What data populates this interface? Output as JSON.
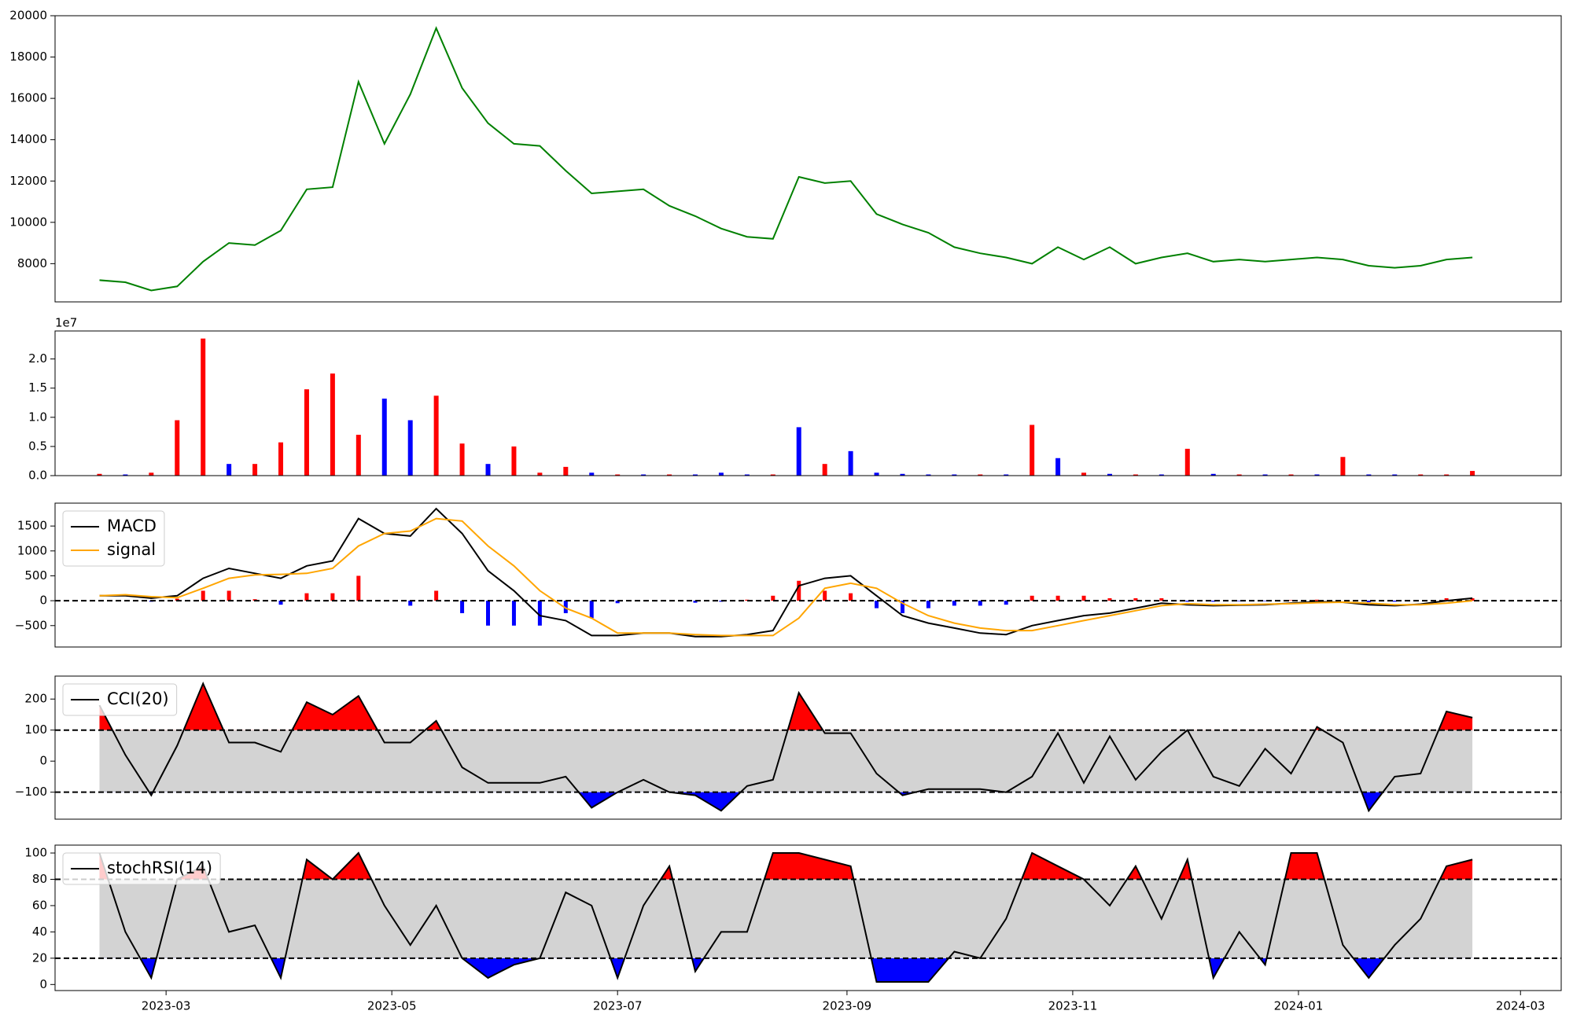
{
  "chart_data": [
    {
      "type": "line",
      "x": [
        "2023-02-11",
        "2023-02-18",
        "2023-02-25",
        "2023-03-04",
        "2023-03-11",
        "2023-03-18",
        "2023-03-25",
        "2023-04-01",
        "2023-04-08",
        "2023-04-15",
        "2023-04-22",
        "2023-04-29",
        "2023-05-06",
        "2023-05-13",
        "2023-05-20",
        "2023-05-27",
        "2023-06-03",
        "2023-06-10",
        "2023-06-17",
        "2023-06-24",
        "2023-07-01",
        "2023-07-08",
        "2023-07-15",
        "2023-07-22",
        "2023-07-29",
        "2023-08-05",
        "2023-08-12",
        "2023-08-19",
        "2023-08-26",
        "2023-09-02",
        "2023-09-09",
        "2023-09-16",
        "2023-09-23",
        "2023-09-30",
        "2023-10-07",
        "2023-10-14",
        "2023-10-21",
        "2023-10-28",
        "2023-11-04",
        "2023-11-11",
        "2023-11-18",
        "2023-11-25",
        "2023-12-02",
        "2023-12-09",
        "2023-12-16",
        "2023-12-23",
        "2023-12-30",
        "2024-01-06",
        "2024-01-13",
        "2024-01-20",
        "2024-01-27",
        "2024-02-03",
        "2024-02-10",
        "2024-02-17"
      ],
      "series": [
        {
          "color": "green",
          "values": [
            7200,
            7100,
            6700,
            6900,
            8100,
            9000,
            8900,
            9600,
            11600,
            11700,
            16800,
            13800,
            16200,
            19400,
            16500,
            14800,
            13800,
            13700,
            12500,
            11400,
            11500,
            11600,
            10800,
            10300,
            9700,
            9300,
            9200,
            12200,
            11900,
            12000,
            10400,
            9900,
            9500,
            8800,
            8500,
            8300,
            8000,
            8800,
            8200,
            8800,
            8000,
            8300,
            8500,
            8100,
            8200,
            8100,
            8200,
            8300,
            8200,
            7900,
            7800,
            7900,
            8200,
            8300
          ]
        }
      ],
      "xlim": [
        "2023-01-30",
        "2024-03-12"
      ],
      "ylim": [
        6150,
        20000
      ],
      "yticks": [
        8000,
        10000,
        12000,
        14000,
        16000,
        18000,
        20000
      ]
    },
    {
      "type": "bar",
      "offset_label": "1e7",
      "x": [
        "2023-02-11",
        "2023-02-18",
        "2023-02-25",
        "2023-03-04",
        "2023-03-11",
        "2023-03-18",
        "2023-03-25",
        "2023-04-01",
        "2023-04-08",
        "2023-04-15",
        "2023-04-22",
        "2023-04-29",
        "2023-05-06",
        "2023-05-13",
        "2023-05-20",
        "2023-05-27",
        "2023-06-03",
        "2023-06-10",
        "2023-06-17",
        "2023-06-24",
        "2023-07-01",
        "2023-07-08",
        "2023-07-15",
        "2023-07-22",
        "2023-07-29",
        "2023-08-05",
        "2023-08-12",
        "2023-08-19",
        "2023-08-26",
        "2023-09-02",
        "2023-09-09",
        "2023-09-16",
        "2023-09-23",
        "2023-09-30",
        "2023-10-07",
        "2023-10-14",
        "2023-10-21",
        "2023-10-28",
        "2023-11-04",
        "2023-11-11",
        "2023-11-18",
        "2023-11-25",
        "2023-12-02",
        "2023-12-09",
        "2023-12-16",
        "2023-12-23",
        "2023-12-30",
        "2024-01-06",
        "2024-01-13",
        "2024-01-20",
        "2024-01-27",
        "2024-02-03",
        "2024-02-10",
        "2024-02-17"
      ],
      "values": [
        0.03,
        0.02,
        0.05,
        0.95,
        2.35,
        0.2,
        0.2,
        0.57,
        1.48,
        1.75,
        0.7,
        1.32,
        0.95,
        1.37,
        0.55,
        0.2,
        0.5,
        0.05,
        0.15,
        0.05,
        0.02,
        0.02,
        0.02,
        0.02,
        0.05,
        0.02,
        0.02,
        0.83,
        0.2,
        0.42,
        0.05,
        0.03,
        0.02,
        0.02,
        0.02,
        0.02,
        0.87,
        0.3,
        0.05,
        0.03,
        0.02,
        0.02,
        0.46,
        0.03,
        0.02,
        0.02,
        0.02,
        0.02,
        0.32,
        0.02,
        0.02,
        0.02,
        0.02,
        0.08
      ],
      "colors": [
        "red",
        "blue",
        "red",
        "red",
        "red",
        "blue",
        "red",
        "red",
        "red",
        "red",
        "red",
        "blue",
        "blue",
        "red",
        "red",
        "blue",
        "red",
        "red",
        "red",
        "blue",
        "red",
        "blue",
        "red",
        "blue",
        "blue",
        "blue",
        "red",
        "blue",
        "red",
        "blue",
        "blue",
        "blue",
        "blue",
        "blue",
        "red",
        "blue",
        "red",
        "blue",
        "red",
        "blue",
        "red",
        "blue",
        "red",
        "blue",
        "red",
        "blue",
        "red",
        "blue",
        "red",
        "blue",
        "blue",
        "red",
        "red",
        "red"
      ],
      "xlim": [
        "2023-01-30",
        "2024-03-12"
      ],
      "ylim": [
        0,
        2.48
      ],
      "yticks": [
        {
          "value": 0,
          "label": "0.0"
        },
        {
          "value": 0.5,
          "label": "0.5"
        },
        {
          "value": 1,
          "label": "1.0"
        },
        {
          "value": 1.5,
          "label": "1.5"
        },
        {
          "value": 2,
          "label": "2.0"
        }
      ]
    },
    {
      "type": "macd",
      "legend": "upper left",
      "hlines": [
        0
      ],
      "x": [
        "2023-02-11",
        "2023-02-18",
        "2023-02-25",
        "2023-03-04",
        "2023-03-11",
        "2023-03-18",
        "2023-03-25",
        "2023-04-01",
        "2023-04-08",
        "2023-04-15",
        "2023-04-22",
        "2023-04-29",
        "2023-05-06",
        "2023-05-13",
        "2023-05-20",
        "2023-05-27",
        "2023-06-03",
        "2023-06-10",
        "2023-06-17",
        "2023-06-24",
        "2023-07-01",
        "2023-07-08",
        "2023-07-15",
        "2023-07-22",
        "2023-07-29",
        "2023-08-05",
        "2023-08-12",
        "2023-08-19",
        "2023-08-26",
        "2023-09-02",
        "2023-09-09",
        "2023-09-16",
        "2023-09-23",
        "2023-09-30",
        "2023-10-07",
        "2023-10-14",
        "2023-10-21",
        "2023-10-28",
        "2023-11-04",
        "2023-11-11",
        "2023-11-18",
        "2023-11-25",
        "2023-12-02",
        "2023-12-09",
        "2023-12-16",
        "2023-12-23",
        "2023-12-30",
        "2024-01-06",
        "2024-01-13",
        "2024-01-20",
        "2024-01-27",
        "2024-02-03",
        "2024-02-10",
        "2024-02-17"
      ],
      "series": [
        {
          "name": "MACD",
          "color": "black",
          "values": [
            100,
            100,
            50,
            100,
            450,
            650,
            550,
            450,
            700,
            800,
            1650,
            1350,
            1300,
            1850,
            1350,
            600,
            200,
            -300,
            -400,
            -700,
            -700,
            -650,
            -650,
            -720,
            -720,
            -680,
            -600,
            300,
            450,
            500,
            100,
            -300,
            -450,
            -550,
            -650,
            -680,
            -500,
            -400,
            -300,
            -250,
            -150,
            -50,
            -80,
            -100,
            -90,
            -80,
            -50,
            -20,
            -30,
            -80,
            -100,
            -70,
            0,
            50
          ]
        },
        {
          "name": "signal",
          "color": "orange",
          "values": [
            100,
            120,
            80,
            60,
            250,
            450,
            520,
            530,
            550,
            650,
            1100,
            1350,
            1400,
            1650,
            1600,
            1100,
            700,
            200,
            -150,
            -350,
            -650,
            -650,
            -650,
            -680,
            -700,
            -700,
            -700,
            -350,
            250,
            350,
            250,
            -50,
            -300,
            -450,
            -550,
            -600,
            -600,
            -500,
            -400,
            -300,
            -200,
            -100,
            -60,
            -80,
            -80,
            -70,
            -60,
            -40,
            -30,
            -50,
            -80,
            -80,
            -50,
            0
          ]
        }
      ],
      "histogram": [
        0,
        0,
        -20,
        40,
        200,
        200,
        30,
        -80,
        150,
        150,
        500,
        0,
        -100,
        200,
        -250,
        -500,
        -500,
        -500,
        -250,
        -350,
        -50,
        0,
        0,
        -40,
        -20,
        20,
        100,
        400,
        200,
        150,
        -150,
        -250,
        -150,
        -100,
        -100,
        -80,
        100,
        100,
        100,
        50,
        50,
        50,
        -20,
        -20,
        -10,
        -10,
        10,
        20,
        0,
        -30,
        -20,
        0,
        50,
        50
      ],
      "histogram_colors": {
        "positive": "red",
        "negative": "blue"
      },
      "xlim": [
        "2023-01-30",
        "2024-03-12"
      ],
      "ylim": [
        -930,
        1960
      ],
      "yticks": [
        {
          "value": -500,
          "label": "−500"
        },
        0,
        500,
        1000,
        1500
      ]
    },
    {
      "type": "oscillator",
      "legend": "upper left",
      "thresholds": [
        100,
        -100
      ],
      "fill_colors": {
        "above": "red",
        "below": "blue",
        "band": "lightgray"
      },
      "x": [
        "2023-02-11",
        "2023-02-18",
        "2023-02-25",
        "2023-03-04",
        "2023-03-11",
        "2023-03-18",
        "2023-03-25",
        "2023-04-01",
        "2023-04-08",
        "2023-04-15",
        "2023-04-22",
        "2023-04-29",
        "2023-05-06",
        "2023-05-13",
        "2023-05-20",
        "2023-05-27",
        "2023-06-03",
        "2023-06-10",
        "2023-06-17",
        "2023-06-24",
        "2023-07-01",
        "2023-07-08",
        "2023-07-15",
        "2023-07-22",
        "2023-07-29",
        "2023-08-05",
        "2023-08-12",
        "2023-08-19",
        "2023-08-26",
        "2023-09-02",
        "2023-09-09",
        "2023-09-16",
        "2023-09-23",
        "2023-09-30",
        "2023-10-07",
        "2023-10-14",
        "2023-10-21",
        "2023-10-28",
        "2023-11-04",
        "2023-11-11",
        "2023-11-18",
        "2023-11-25",
        "2023-12-02",
        "2023-12-09",
        "2023-12-16",
        "2023-12-23",
        "2023-12-30",
        "2024-01-06",
        "2024-01-13",
        "2024-01-20",
        "2024-01-27",
        "2024-02-03",
        "2024-02-10",
        "2024-02-17"
      ],
      "series": [
        {
          "name": "CCI(20)",
          "color": "black",
          "values": [
            180,
            20,
            -110,
            50,
            250,
            60,
            60,
            30,
            190,
            150,
            210,
            60,
            60,
            130,
            -20,
            -70,
            -70,
            -70,
            -50,
            -150,
            -100,
            -60,
            -100,
            -110,
            -160,
            -80,
            -60,
            220,
            90,
            90,
            -40,
            -110,
            -90,
            -90,
            -90,
            -100,
            -50,
            90,
            -70,
            80,
            -60,
            30,
            100,
            -50,
            -80,
            40,
            -40,
            110,
            60,
            -160,
            -50,
            -40,
            160,
            140
          ]
        }
      ],
      "xlim": [
        "2023-01-30",
        "2024-03-12"
      ],
      "ylim": [
        -187,
        274
      ],
      "yticks": [
        {
          "value": -100,
          "label": "−100"
        },
        0,
        100,
        200
      ]
    },
    {
      "type": "oscillator",
      "legend": "upper left",
      "thresholds": [
        80,
        20
      ],
      "fill_colors": {
        "above": "red",
        "below": "blue",
        "band": "lightgray"
      },
      "x": [
        "2023-02-11",
        "2023-02-18",
        "2023-02-25",
        "2023-03-04",
        "2023-03-11",
        "2023-03-18",
        "2023-03-25",
        "2023-04-01",
        "2023-04-08",
        "2023-04-15",
        "2023-04-22",
        "2023-04-29",
        "2023-05-06",
        "2023-05-13",
        "2023-05-20",
        "2023-05-27",
        "2023-06-03",
        "2023-06-10",
        "2023-06-17",
        "2023-06-24",
        "2023-07-01",
        "2023-07-08",
        "2023-07-15",
        "2023-07-22",
        "2023-07-29",
        "2023-08-05",
        "2023-08-12",
        "2023-08-19",
        "2023-08-26",
        "2023-09-02",
        "2023-09-09",
        "2023-09-16",
        "2023-09-23",
        "2023-09-30",
        "2023-10-07",
        "2023-10-14",
        "2023-10-21",
        "2023-10-28",
        "2023-11-04",
        "2023-11-11",
        "2023-11-18",
        "2023-11-25",
        "2023-12-02",
        "2023-12-09",
        "2023-12-16",
        "2023-12-23",
        "2023-12-30",
        "2024-01-06",
        "2024-01-13",
        "2024-01-20",
        "2024-01-27",
        "2024-02-03",
        "2024-02-10",
        "2024-02-17"
      ],
      "series": [
        {
          "name": "stochRSI(14)",
          "color": "black",
          "values": [
            100,
            40,
            5,
            80,
            90,
            40,
            45,
            5,
            95,
            80,
            100,
            60,
            30,
            60,
            20,
            5,
            15,
            20,
            70,
            60,
            5,
            60,
            90,
            10,
            40,
            40,
            100,
            100,
            95,
            90,
            2,
            2,
            2,
            25,
            20,
            50,
            100,
            90,
            80,
            60,
            90,
            50,
            95,
            5,
            40,
            15,
            100,
            100,
            30,
            5,
            30,
            50,
            90,
            95
          ]
        }
      ],
      "xlim": [
        "2023-01-30",
        "2024-03-12"
      ],
      "ylim": [
        -4.6,
        106
      ],
      "yticks": [
        0,
        20,
        40,
        60,
        80,
        100
      ],
      "xticks": [
        {
          "value": "2023-03-01",
          "label": "2023-03"
        },
        {
          "value": "2023-05-01",
          "label": "2023-05"
        },
        {
          "value": "2023-07-01",
          "label": "2023-07"
        },
        {
          "value": "2023-09-01",
          "label": "2023-09"
        },
        {
          "value": "2023-11-01",
          "label": "2023-11"
        },
        {
          "value": "2024-01-01",
          "label": "2024-01"
        },
        {
          "value": "2024-03-01",
          "label": "2024-03"
        }
      ]
    }
  ]
}
